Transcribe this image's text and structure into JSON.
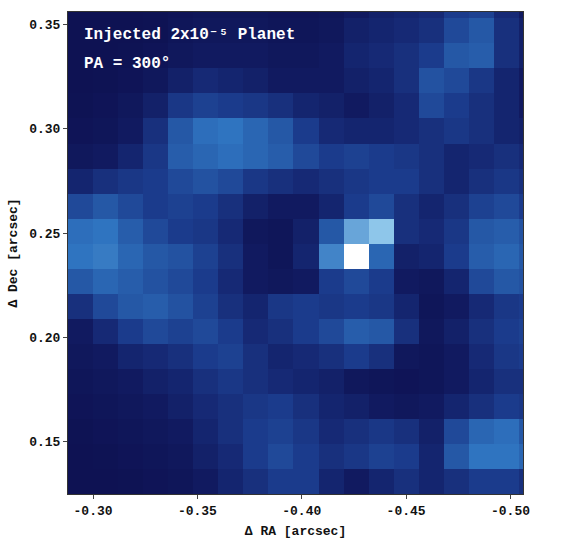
{
  "chart_data": {
    "type": "heatmap",
    "xlabel": "Δ RA [arcsec]",
    "ylabel": "Δ Dec [arcsec]",
    "annotations": [
      "Injected 2x10⁻⁵ Planet",
      "PA = 300°"
    ],
    "xlim": [
      -0.288,
      -0.506
    ],
    "ylim": [
      0.125,
      0.356
    ],
    "xticks": [
      {
        "value": -0.3,
        "label": "-0.30"
      },
      -0.35,
      {
        "value": -0.4,
        "label": "-0.40"
      },
      -0.45,
      {
        "value": -0.5,
        "label": "-0.50"
      }
    ],
    "yticks": [
      0.15,
      {
        "value": 0.2,
        "label": "0.20"
      },
      0.25,
      {
        "value": 0.3,
        "label": "0.30"
      },
      0.35
    ],
    "zlim": [
      0,
      1
    ],
    "x": [
      -0.294,
      -0.306,
      -0.318,
      -0.33,
      -0.342,
      -0.354,
      -0.366,
      -0.378,
      -0.39,
      -0.402,
      -0.414,
      -0.426,
      -0.438,
      -0.45,
      -0.462,
      -0.474,
      -0.486,
      -0.498,
      -0.51
    ],
    "y": [
      0.131,
      0.143,
      0.155,
      0.167,
      0.179,
      0.191,
      0.203,
      0.215,
      0.227,
      0.239,
      0.251,
      0.263,
      0.275,
      0.287,
      0.299,
      0.311,
      0.323,
      0.335,
      0.347,
      0.359
    ],
    "z": [
      [
        0.05,
        0.05,
        0.06,
        0.08,
        0.1,
        0.15,
        0.2,
        0.25,
        0.3,
        0.3,
        0.2,
        0.15,
        0.2,
        0.25,
        0.2,
        0.25,
        0.3,
        0.3,
        0.25
      ],
      [
        0.05,
        0.06,
        0.08,
        0.1,
        0.12,
        0.18,
        0.22,
        0.3,
        0.35,
        0.3,
        0.25,
        0.28,
        0.32,
        0.3,
        0.2,
        0.4,
        0.5,
        0.5,
        0.45
      ],
      [
        0.06,
        0.08,
        0.1,
        0.12,
        0.15,
        0.2,
        0.25,
        0.3,
        0.32,
        0.28,
        0.22,
        0.25,
        0.28,
        0.25,
        0.18,
        0.35,
        0.45,
        0.48,
        0.4
      ],
      [
        0.08,
        0.1,
        0.12,
        0.15,
        0.18,
        0.22,
        0.25,
        0.28,
        0.3,
        0.25,
        0.2,
        0.18,
        0.15,
        0.12,
        0.15,
        0.2,
        0.25,
        0.3,
        0.28
      ],
      [
        0.1,
        0.12,
        0.15,
        0.18,
        0.2,
        0.25,
        0.28,
        0.25,
        0.22,
        0.2,
        0.18,
        0.12,
        0.1,
        0.08,
        0.1,
        0.15,
        0.2,
        0.25,
        0.25
      ],
      [
        0.12,
        0.15,
        0.2,
        0.22,
        0.25,
        0.3,
        0.32,
        0.25,
        0.2,
        0.22,
        0.25,
        0.3,
        0.25,
        0.12,
        0.1,
        0.15,
        0.22,
        0.28,
        0.3
      ],
      [
        0.15,
        0.22,
        0.3,
        0.35,
        0.32,
        0.35,
        0.3,
        0.22,
        0.25,
        0.3,
        0.35,
        0.42,
        0.4,
        0.25,
        0.12,
        0.18,
        0.25,
        0.3,
        0.32
      ],
      [
        0.25,
        0.35,
        0.4,
        0.42,
        0.38,
        0.32,
        0.25,
        0.2,
        0.28,
        0.3,
        0.28,
        0.3,
        0.28,
        0.2,
        0.1,
        0.15,
        0.22,
        0.28,
        0.3
      ],
      [
        0.4,
        0.45,
        0.42,
        0.38,
        0.35,
        0.3,
        0.22,
        0.15,
        0.12,
        0.15,
        0.3,
        0.35,
        0.3,
        0.15,
        0.12,
        0.2,
        0.35,
        0.4,
        0.38
      ],
      [
        0.5,
        0.52,
        0.45,
        0.4,
        0.38,
        0.32,
        0.25,
        0.15,
        0.1,
        0.2,
        0.55,
        1.0,
        0.45,
        0.18,
        0.2,
        0.3,
        0.42,
        0.45,
        0.4
      ],
      [
        0.48,
        0.5,
        0.42,
        0.35,
        0.3,
        0.28,
        0.22,
        0.12,
        0.1,
        0.18,
        0.4,
        0.65,
        0.75,
        0.25,
        0.22,
        0.28,
        0.4,
        0.42,
        0.38
      ],
      [
        0.35,
        0.4,
        0.35,
        0.3,
        0.32,
        0.3,
        0.25,
        0.18,
        0.15,
        0.15,
        0.2,
        0.3,
        0.35,
        0.25,
        0.2,
        0.25,
        0.32,
        0.35,
        0.3
      ],
      [
        0.2,
        0.25,
        0.28,
        0.3,
        0.35,
        0.38,
        0.35,
        0.28,
        0.25,
        0.22,
        0.25,
        0.28,
        0.3,
        0.3,
        0.25,
        0.2,
        0.25,
        0.28,
        0.25
      ],
      [
        0.12,
        0.15,
        0.2,
        0.28,
        0.42,
        0.45,
        0.48,
        0.45,
        0.42,
        0.35,
        0.3,
        0.32,
        0.3,
        0.28,
        0.25,
        0.2,
        0.22,
        0.25,
        0.22
      ],
      [
        0.08,
        0.1,
        0.15,
        0.25,
        0.4,
        0.48,
        0.5,
        0.45,
        0.4,
        0.3,
        0.22,
        0.2,
        0.2,
        0.22,
        0.25,
        0.28,
        0.25,
        0.2,
        0.18
      ],
      [
        0.06,
        0.08,
        0.12,
        0.18,
        0.28,
        0.32,
        0.3,
        0.28,
        0.25,
        0.2,
        0.18,
        0.15,
        0.18,
        0.22,
        0.35,
        0.3,
        0.25,
        0.2,
        0.15
      ],
      [
        0.05,
        0.06,
        0.08,
        0.12,
        0.18,
        0.22,
        0.2,
        0.18,
        0.15,
        0.15,
        0.15,
        0.18,
        0.2,
        0.25,
        0.38,
        0.35,
        0.28,
        0.2,
        0.15
      ],
      [
        0.05,
        0.05,
        0.06,
        0.08,
        0.12,
        0.15,
        0.15,
        0.15,
        0.12,
        0.12,
        0.15,
        0.2,
        0.22,
        0.25,
        0.3,
        0.4,
        0.42,
        0.25,
        0.18
      ],
      [
        0.05,
        0.05,
        0.05,
        0.06,
        0.1,
        0.12,
        0.12,
        0.12,
        0.1,
        0.1,
        0.12,
        0.18,
        0.2,
        0.22,
        0.25,
        0.35,
        0.4,
        0.25,
        0.18
      ],
      [
        0.05,
        0.05,
        0.05,
        0.06,
        0.08,
        0.1,
        0.1,
        0.1,
        0.08,
        0.08,
        0.1,
        0.15,
        0.18,
        0.2,
        0.22,
        0.3,
        0.32,
        0.22,
        0.15
      ]
    ]
  }
}
